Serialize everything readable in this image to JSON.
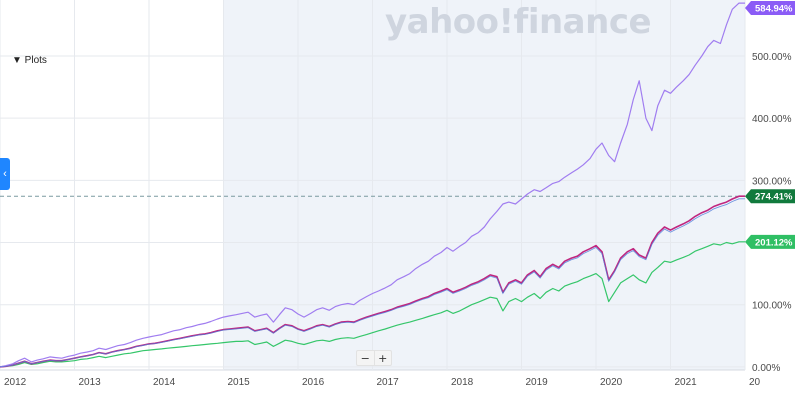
{
  "ui": {
    "watermark": "yahoo!finance",
    "plots_label": "▼ Plots",
    "collapse_icon": "chevron-left-icon",
    "zoom_out_label": "−",
    "zoom_in_label": "+"
  },
  "chart_data": {
    "type": "line",
    "title": "",
    "xlabel": "",
    "ylabel": "",
    "x": [
      2012.0,
      2012.08,
      2012.17,
      2012.25,
      2012.33,
      2012.42,
      2012.5,
      2012.58,
      2012.67,
      2012.75,
      2012.83,
      2012.92,
      2013.0,
      2013.08,
      2013.17,
      2013.25,
      2013.33,
      2013.42,
      2013.5,
      2013.58,
      2013.67,
      2013.75,
      2013.83,
      2013.92,
      2014.0,
      2014.08,
      2014.17,
      2014.25,
      2014.33,
      2014.42,
      2014.5,
      2014.58,
      2014.67,
      2014.75,
      2014.83,
      2014.92,
      2015.0,
      2015.08,
      2015.17,
      2015.25,
      2015.33,
      2015.42,
      2015.5,
      2015.58,
      2015.67,
      2015.75,
      2015.83,
      2015.92,
      2016.0,
      2016.08,
      2016.17,
      2016.25,
      2016.33,
      2016.42,
      2016.5,
      2016.58,
      2016.67,
      2016.75,
      2016.83,
      2016.92,
      2017.0,
      2017.08,
      2017.17,
      2017.25,
      2017.33,
      2017.42,
      2017.5,
      2017.58,
      2017.67,
      2017.75,
      2017.83,
      2017.92,
      2018.0,
      2018.08,
      2018.17,
      2018.25,
      2018.33,
      2018.42,
      2018.5,
      2018.58,
      2018.67,
      2018.75,
      2018.83,
      2018.92,
      2019.0,
      2019.08,
      2019.17,
      2019.25,
      2019.33,
      2019.42,
      2019.5,
      2019.58,
      2019.67,
      2019.75,
      2019.83,
      2019.92,
      2020.0,
      2020.08,
      2020.17,
      2020.25,
      2020.33,
      2020.42,
      2020.5,
      2020.58,
      2020.67,
      2020.75,
      2020.83,
      2020.92,
      2021.0,
      2021.08,
      2021.17,
      2021.25,
      2021.33,
      2021.42,
      2021.5,
      2021.58,
      2021.67,
      2021.75,
      2021.83,
      2021.92,
      2022.0
    ],
    "series": [
      {
        "name": "",
        "color": "#a07df0",
        "end_label": "584.94%",
        "values": [
          0,
          2,
          5,
          10,
          14,
          8,
          11,
          13,
          16,
          15,
          14,
          17,
          19,
          22,
          24,
          26,
          30,
          28,
          31,
          34,
          36,
          39,
          43,
          46,
          48,
          50,
          52,
          55,
          58,
          60,
          63,
          65,
          68,
          70,
          73,
          77,
          80,
          82,
          84,
          86,
          88,
          80,
          83,
          85,
          72,
          84,
          95,
          92,
          85,
          80,
          86,
          92,
          95,
          91,
          97,
          100,
          102,
          100,
          107,
          113,
          118,
          122,
          127,
          132,
          140,
          145,
          150,
          158,
          165,
          170,
          178,
          184,
          192,
          186,
          194,
          200,
          210,
          216,
          225,
          238,
          250,
          262,
          265,
          262,
          270,
          278,
          285,
          282,
          288,
          295,
          298,
          305,
          312,
          318,
          325,
          335,
          350,
          360,
          340,
          330,
          360,
          390,
          430,
          460,
          400,
          380,
          420,
          445,
          440,
          450,
          460,
          470,
          485,
          500,
          515,
          525,
          520,
          550,
          575,
          584.94,
          584.94
        ]
      },
      {
        "name": "",
        "color": "#c0267f",
        "end_label": "274.41%",
        "values": [
          0,
          1,
          3,
          6,
          9,
          5,
          7,
          9,
          11,
          10,
          10,
          12,
          14,
          16,
          18,
          20,
          23,
          21,
          24,
          26,
          28,
          30,
          33,
          35,
          37,
          38,
          40,
          42,
          44,
          46,
          48,
          50,
          52,
          53,
          55,
          58,
          60,
          61,
          62,
          63,
          64,
          58,
          60,
          62,
          55,
          62,
          68,
          66,
          61,
          58,
          62,
          66,
          68,
          65,
          69,
          72,
          73,
          72,
          76,
          80,
          83,
          86,
          89,
          92,
          96,
          99,
          102,
          106,
          110,
          113,
          118,
          122,
          126,
          120,
          124,
          128,
          133,
          137,
          142,
          148,
          145,
          120,
          135,
          140,
          135,
          148,
          155,
          145,
          158,
          165,
          160,
          170,
          175,
          178,
          185,
          190,
          195,
          185,
          140,
          155,
          175,
          185,
          190,
          180,
          175,
          200,
          215,
          225,
          220,
          225,
          230,
          235,
          242,
          248,
          252,
          258,
          262,
          265,
          270,
          274.41,
          274.41
        ]
      },
      {
        "name": "",
        "color": "#35c66a",
        "end_label": "201.12%",
        "values": [
          0,
          1,
          2,
          4,
          7,
          4,
          5,
          7,
          9,
          8,
          8,
          9,
          10,
          12,
          13,
          15,
          17,
          15,
          17,
          19,
          21,
          22,
          24,
          26,
          27,
          28,
          29,
          30,
          31,
          32,
          33,
          34,
          35,
          36,
          37,
          38,
          39,
          40,
          41,
          41,
          42,
          36,
          38,
          40,
          33,
          38,
          43,
          41,
          38,
          36,
          39,
          42,
          43,
          41,
          44,
          46,
          47,
          46,
          49,
          52,
          55,
          58,
          61,
          64,
          67,
          70,
          72,
          75,
          78,
          81,
          84,
          87,
          91,
          86,
          90,
          95,
          100,
          104,
          108,
          112,
          110,
          90,
          105,
          110,
          105,
          112,
          118,
          110,
          120,
          126,
          122,
          130,
          134,
          137,
          142,
          146,
          150,
          142,
          105,
          120,
          135,
          142,
          148,
          140,
          135,
          152,
          160,
          170,
          168,
          172,
          176,
          180,
          186,
          190,
          194,
          198,
          196,
          200,
          198,
          201.12,
          201.12
        ]
      }
    ],
    "xticks": [
      "2012",
      "2013",
      "2014",
      "2015",
      "2016",
      "2017",
      "2018",
      "2019",
      "2020",
      "2021",
      "20"
    ],
    "yticks": [
      "0.00%",
      "100.00%",
      "200.00%",
      "300.00%",
      "400.00%",
      "500.00%"
    ],
    "ylim": [
      -5,
      590
    ],
    "reference_line": {
      "y": 274.41,
      "style": "dashed"
    },
    "grid": true,
    "shaded_x_range": [
      2015,
      2022
    ]
  }
}
